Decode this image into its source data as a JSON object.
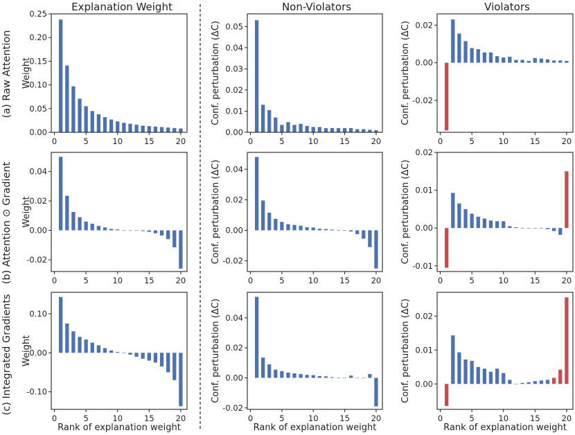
{
  "column_titles": [
    "Explanation Weight",
    "Non-Violators",
    "Violators"
  ],
  "row_labels": [
    "(a) Raw Attention",
    "(b) Attention ⊙ Gradient",
    "(c) Integrated Gradients"
  ],
  "ylabels": {
    "weight": "Weight",
    "perturbation": "Conf. perturbation (ΔC)"
  },
  "xlabel": "Rank of explanation weight",
  "colors": {
    "positive": "#4c72b0",
    "negative": "#c44e52",
    "axis": "#222222"
  },
  "chart_data": [
    {
      "type": "bar",
      "row": 0,
      "col": 0,
      "title": "Explanation Weight",
      "ylabel": "Weight",
      "xlabel": "",
      "x": [
        1,
        2,
        3,
        4,
        5,
        6,
        7,
        8,
        9,
        10,
        11,
        12,
        13,
        14,
        15,
        16,
        17,
        18,
        19,
        20
      ],
      "values": [
        0.238,
        0.141,
        0.097,
        0.071,
        0.055,
        0.045,
        0.038,
        0.032,
        0.027,
        0.023,
        0.02,
        0.018,
        0.016,
        0.014,
        0.013,
        0.012,
        0.011,
        0.01,
        0.009,
        0.008
      ],
      "highlight": [],
      "ylim": [
        0,
        0.25
      ],
      "yticks": [
        0,
        0.05,
        0.1,
        0.15,
        0.2,
        0.25
      ],
      "yticklabels": [
        "0.00",
        "0.05",
        "0.10",
        "0.15",
        "0.20",
        "0.25"
      ],
      "xlim": [
        -0.5,
        21
      ],
      "xticks": [
        0,
        5,
        10,
        15,
        20
      ]
    },
    {
      "type": "bar",
      "row": 0,
      "col": 1,
      "title": "Non-Violators",
      "ylabel": "Conf. perturbation (ΔC)",
      "xlabel": "",
      "x": [
        1,
        2,
        3,
        4,
        5,
        6,
        7,
        8,
        9,
        10,
        11,
        12,
        13,
        14,
        15,
        16,
        17,
        18,
        19,
        20
      ],
      "values": [
        0.053,
        0.013,
        0.0105,
        0.007,
        0.0035,
        0.0048,
        0.0035,
        0.004,
        0.003,
        0.0025,
        0.0025,
        0.002,
        0.002,
        0.002,
        0.002,
        0.002,
        0.0015,
        0.0015,
        0.0012,
        0.001
      ],
      "highlight": [],
      "ylim": [
        0,
        0.056
      ],
      "yticks": [
        0,
        0.01,
        0.02,
        0.03,
        0.04,
        0.05
      ],
      "yticklabels": [
        "0.00",
        "0.01",
        "0.02",
        "0.03",
        "0.04",
        "0.05"
      ],
      "xlim": [
        -0.5,
        21
      ],
      "xticks": [
        0,
        5,
        10,
        15,
        20
      ]
    },
    {
      "type": "bar",
      "row": 0,
      "col": 2,
      "title": "Violators",
      "ylabel": "Conf. perturbation (ΔC)",
      "xlabel": "",
      "x": [
        1,
        2,
        3,
        4,
        5,
        6,
        7,
        8,
        9,
        10,
        11,
        12,
        13,
        14,
        15,
        16,
        17,
        18,
        19,
        20
      ],
      "values": [
        -0.036,
        0.023,
        0.0155,
        0.0115,
        0.0078,
        0.0072,
        0.0055,
        0.0055,
        0.0035,
        0.0028,
        0.0032,
        0.0015,
        0.0015,
        0.001,
        0.0025,
        0.0022,
        0.0018,
        0.0012,
        0.0012,
        0.001
      ],
      "highlight": [
        1
      ],
      "ylim": [
        -0.037,
        0.026
      ],
      "yticks": [
        -0.02,
        0,
        0.02
      ],
      "yticklabels": [
        "-0.02",
        "0.00",
        "0.02"
      ],
      "xlim": [
        -0.5,
        21
      ],
      "xticks": [
        0,
        5,
        10,
        15,
        20
      ]
    },
    {
      "type": "bar",
      "row": 1,
      "col": 0,
      "title": "",
      "ylabel": "Weight",
      "xlabel": "",
      "x": [
        1,
        2,
        3,
        4,
        5,
        6,
        7,
        8,
        9,
        10,
        11,
        12,
        13,
        14,
        15,
        16,
        17,
        18,
        19,
        20
      ],
      "values": [
        0.05,
        0.0235,
        0.0125,
        0.009,
        0.006,
        0.0045,
        0.003,
        0.002,
        0.001,
        0.0006,
        0.0,
        0.0,
        0.0,
        -0.0005,
        -0.001,
        -0.002,
        -0.0035,
        -0.006,
        -0.0115,
        -0.026
      ],
      "highlight": [],
      "ylim": [
        -0.028,
        0.053
      ],
      "yticks": [
        -0.02,
        0,
        0.02,
        0.04
      ],
      "yticklabels": [
        "-0.02",
        "0.00",
        "0.02",
        "0.04"
      ],
      "xlim": [
        -0.5,
        21
      ],
      "xticks": [
        0,
        5,
        10,
        15,
        20
      ]
    },
    {
      "type": "bar",
      "row": 1,
      "col": 1,
      "title": "",
      "ylabel": "Conf. perturbation (ΔC)",
      "xlabel": "",
      "x": [
        1,
        2,
        3,
        4,
        5,
        6,
        7,
        8,
        9,
        10,
        11,
        12,
        13,
        14,
        15,
        16,
        17,
        18,
        19,
        20
      ],
      "values": [
        0.048,
        0.0195,
        0.0115,
        0.0075,
        0.0055,
        0.004,
        0.0035,
        0.003,
        0.002,
        0.0018,
        0.001,
        0.0008,
        0.0005,
        0.0,
        0.0,
        -0.0008,
        -0.0025,
        -0.0055,
        -0.011,
        -0.025
      ],
      "highlight": [],
      "ylim": [
        -0.027,
        0.051
      ],
      "yticks": [
        -0.02,
        0,
        0.02,
        0.04
      ],
      "yticklabels": [
        "-0.02",
        "0.00",
        "0.02",
        "0.04"
      ],
      "xlim": [
        -0.5,
        21
      ],
      "xticks": [
        0,
        5,
        10,
        15,
        20
      ]
    },
    {
      "type": "bar",
      "row": 1,
      "col": 2,
      "title": "",
      "ylabel": "Conf. perturbation (ΔC)",
      "xlabel": "",
      "x": [
        1,
        2,
        3,
        4,
        5,
        6,
        7,
        8,
        9,
        10,
        11,
        12,
        13,
        14,
        15,
        16,
        17,
        18,
        19,
        20
      ],
      "values": [
        -0.0105,
        0.0093,
        0.0065,
        0.005,
        0.0038,
        0.003,
        0.0025,
        0.002,
        0.0018,
        0.0018,
        0.0005,
        0.0002,
        0.0,
        0.0,
        0.0,
        0.0,
        -0.0003,
        -0.0008,
        -0.0018,
        0.015
      ],
      "highlight": [
        1,
        20
      ],
      "ylim": [
        -0.0115,
        0.02
      ],
      "yticks": [
        -0.01,
        0,
        0.01,
        0.02
      ],
      "yticklabels": [
        "-0.01",
        "0.00",
        "0.01",
        "0.02"
      ],
      "xlim": [
        -0.5,
        21
      ],
      "xticks": [
        0,
        5,
        10,
        15,
        20
      ]
    },
    {
      "type": "bar",
      "row": 2,
      "col": 0,
      "title": "",
      "ylabel": "Weight",
      "xlabel": "Rank of explanation weight",
      "x": [
        1,
        2,
        3,
        4,
        5,
        6,
        7,
        8,
        9,
        10,
        11,
        12,
        13,
        14,
        15,
        16,
        17,
        18,
        19,
        20
      ],
      "values": [
        0.143,
        0.075,
        0.055,
        0.041,
        0.034,
        0.026,
        0.019,
        0.012,
        0.006,
        0.002,
        0.0,
        -0.005,
        -0.01,
        -0.015,
        -0.02,
        -0.025,
        -0.035,
        -0.05,
        -0.07,
        -0.137
      ],
      "highlight": [],
      "ylim": [
        -0.145,
        0.155
      ],
      "yticks": [
        -0.1,
        0,
        0.1
      ],
      "yticklabels": [
        "-0.10",
        "0.00",
        "0.10"
      ],
      "xlim": [
        -0.5,
        21
      ],
      "xticks": [
        0,
        5,
        10,
        15,
        20
      ]
    },
    {
      "type": "bar",
      "row": 2,
      "col": 1,
      "title": "",
      "ylabel": "Conf. perturbation (ΔC)",
      "xlabel": "Rank of explanation weight",
      "x": [
        1,
        2,
        3,
        4,
        5,
        6,
        7,
        8,
        9,
        10,
        11,
        12,
        13,
        14,
        15,
        16,
        17,
        18,
        19,
        20
      ],
      "values": [
        0.054,
        0.0135,
        0.009,
        0.0055,
        0.0045,
        0.0035,
        0.003,
        0.0025,
        0.002,
        0.0018,
        0.0012,
        0.001,
        0.0005,
        0.0,
        0.0,
        0.0015,
        0.0,
        0.0,
        0.0025,
        -0.019
      ],
      "highlight": [],
      "ylim": [
        -0.021,
        0.057
      ],
      "yticks": [
        -0.02,
        0,
        0.02,
        0.04
      ],
      "yticklabels": [
        "-0.02",
        "0.00",
        "0.02",
        "0.04"
      ],
      "xlim": [
        -0.5,
        21
      ],
      "xticks": [
        0,
        5,
        10,
        15,
        20
      ]
    },
    {
      "type": "bar",
      "row": 2,
      "col": 2,
      "title": "",
      "ylabel": "Conf. perturbation (ΔC)",
      "xlabel": "Rank of explanation weight",
      "x": [
        1,
        2,
        3,
        4,
        5,
        6,
        7,
        8,
        9,
        10,
        11,
        12,
        13,
        14,
        15,
        16,
        17,
        18,
        19,
        20
      ],
      "values": [
        -0.0065,
        0.0143,
        0.0093,
        0.0072,
        0.0068,
        0.005,
        0.0045,
        0.0036,
        0.0045,
        0.0032,
        0.0012,
        0.0,
        0.0003,
        0.0005,
        0.0008,
        0.001,
        0.0012,
        0.0018,
        0.0042,
        0.0255
      ],
      "highlight": [
        1,
        18,
        19,
        20
      ],
      "ylim": [
        -0.0075,
        0.027
      ],
      "yticks": [
        0,
        0.01,
        0.02
      ],
      "yticklabels": [
        "0.00",
        "0.01",
        "0.02"
      ],
      "xlim": [
        -0.5,
        21
      ],
      "xticks": [
        0,
        5,
        10,
        15,
        20
      ]
    }
  ]
}
